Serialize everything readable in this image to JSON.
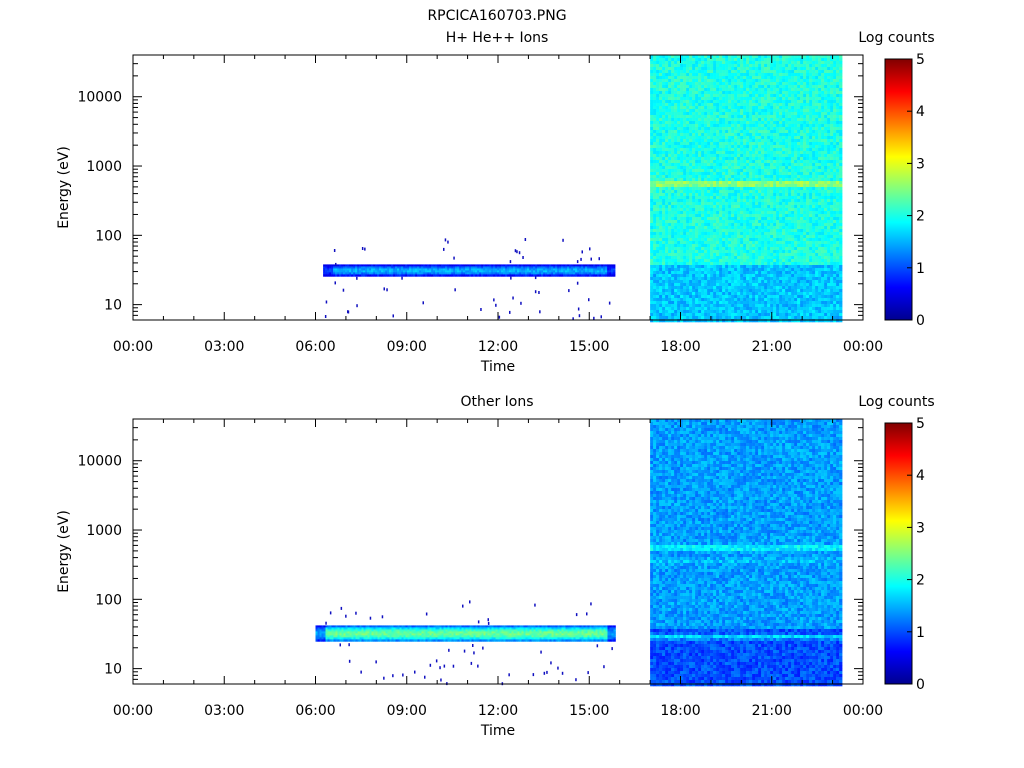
{
  "page_title": "RPCICA160703.PNG",
  "chart_data": [
    {
      "type": "heatmap",
      "title": "H+ He++ Ions",
      "xlabel": "Time",
      "ylabel": "Energy (eV)",
      "xlim": [
        "00:00",
        "24:00"
      ],
      "ylim": [
        6,
        40000
      ],
      "y_scale": "log",
      "x_tick_labels": [
        "00:00",
        "03:00",
        "06:00",
        "09:00",
        "12:00",
        "15:00",
        "18:00",
        "21:00",
        "00:00"
      ],
      "y_tick_labels": [
        "10",
        "100",
        "1000",
        "10000"
      ],
      "colorbar": {
        "label": "Log counts",
        "range": [
          0,
          5
        ],
        "tick_labels": [
          "0",
          "1",
          "2",
          "3",
          "4",
          "5"
        ]
      },
      "regions": [
        {
          "kind": "band",
          "t_start": "06:15",
          "t_end": "15:50",
          "energy_low_eV": 27,
          "energy_high_eV": 38,
          "peak_energy_eV": 32,
          "peak_log_counts": 1.5
        },
        {
          "kind": "block",
          "t_start": "17:00",
          "t_end": "23:15",
          "energy_low_eV": 6,
          "energy_high_eV": 40000,
          "background_log_counts": 2.0,
          "lines": [
            {
              "energy_eV": 580,
              "log_counts": 2.8
            },
            {
              "energy_eV": 130,
              "log_counts": 1.8
            },
            {
              "energy_eV": 30,
              "log_counts": 1.3
            }
          ]
        }
      ]
    },
    {
      "type": "heatmap",
      "title": "Other Ions",
      "xlabel": "Time",
      "ylabel": "Energy (eV)",
      "xlim": [
        "00:00",
        "24:00"
      ],
      "ylim": [
        6,
        40000
      ],
      "y_scale": "log",
      "x_tick_labels": [
        "00:00",
        "03:00",
        "06:00",
        "09:00",
        "12:00",
        "15:00",
        "18:00",
        "21:00",
        "00:00"
      ],
      "y_tick_labels": [
        "10",
        "100",
        "1000",
        "10000"
      ],
      "colorbar": {
        "label": "Log counts",
        "range": [
          0,
          5
        ],
        "tick_labels": [
          "0",
          "1",
          "2",
          "3",
          "4",
          "5"
        ]
      },
      "regions": [
        {
          "kind": "band",
          "t_start": "06:00",
          "t_end": "15:50",
          "energy_low_eV": 25,
          "energy_high_eV": 42,
          "peak_energy_eV": 33,
          "peak_log_counts": 2.4
        },
        {
          "kind": "block",
          "t_start": "17:00",
          "t_end": "23:15",
          "energy_low_eV": 6,
          "energy_high_eV": 40000,
          "background_log_counts": 1.4,
          "lines": [
            {
              "energy_eV": 580,
              "log_counts": 2.0
            },
            {
              "energy_eV": 380,
              "log_counts": 1.6
            },
            {
              "energy_eV": 30,
              "log_counts": 2.1
            }
          ]
        }
      ]
    }
  ]
}
